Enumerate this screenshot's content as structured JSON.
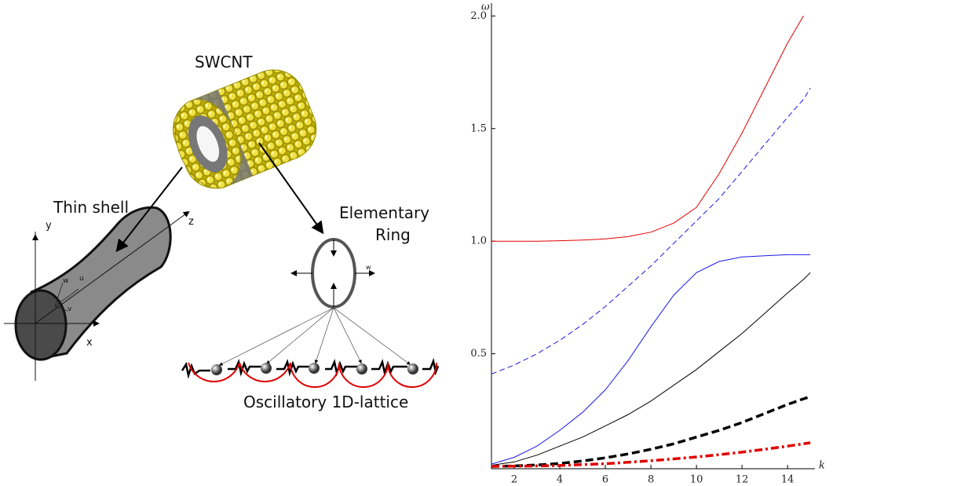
{
  "diagram": {
    "nanotube": "SWCNT",
    "shell": "Thin shell",
    "ring": [
      "Elementary",
      "Ring"
    ],
    "lattice": "Oscillatory 1D-lattice",
    "axes": [
      "y",
      "z",
      "x"
    ],
    "shell_vectors": [
      "w",
      "u",
      "v"
    ],
    "ring_vector": "w"
  },
  "chart_data": {
    "type": "line",
    "x_label": "k",
    "y_label": "ω",
    "x": [
      1,
      2,
      3,
      4,
      5,
      6,
      7,
      8,
      9,
      10,
      11,
      12,
      13,
      14,
      14.7,
      15
    ],
    "xlim": [
      1,
      15.2
    ],
    "xticks": [
      2,
      4,
      6,
      8,
      10,
      12,
      14
    ],
    "ylim": [
      0,
      2.05
    ],
    "yticks": [
      0.5,
      {
        "value": 1,
        "label": "1.0"
      },
      1.5,
      {
        "value": 2,
        "label": "2.0"
      }
    ],
    "series": [
      {
        "color": "#e00000",
        "dash": "solid",
        "width": 1,
        "values": [
          1.0,
          1.0,
          1.0,
          1.002,
          1.005,
          1.01,
          1.02,
          1.04,
          1.08,
          1.15,
          1.3,
          1.48,
          1.68,
          1.88,
          2.0,
          null
        ]
      },
      {
        "color": "#1a1ae6",
        "dash": "dashed",
        "width": 1,
        "values": [
          0.41,
          0.45,
          0.5,
          0.56,
          0.63,
          0.71,
          0.8,
          0.89,
          0.99,
          1.09,
          1.19,
          1.31,
          1.43,
          1.55,
          1.63,
          1.68
        ]
      },
      {
        "color": "#1a1ae6",
        "dash": "solid",
        "width": 1,
        "values": [
          0.01,
          0.04,
          0.09,
          0.16,
          0.24,
          0.34,
          0.47,
          0.62,
          0.76,
          0.86,
          0.91,
          0.93,
          0.935,
          0.94,
          0.94,
          0.94
        ]
      },
      {
        "color": "#000000",
        "dash": "solid",
        "width": 1,
        "values": [
          0.005,
          0.02,
          0.05,
          0.09,
          0.13,
          0.18,
          0.23,
          0.29,
          0.36,
          0.43,
          0.51,
          0.59,
          0.68,
          0.77,
          0.83,
          0.86
        ]
      },
      {
        "color": "#000000",
        "dash": "dashed",
        "width": 3.5,
        "values": [
          0,
          0.002,
          0.006,
          0.013,
          0.024,
          0.038,
          0.055,
          0.076,
          0.1,
          0.13,
          0.16,
          0.195,
          0.235,
          0.275,
          0.3,
          0.31
        ]
      },
      {
        "color": "#e00000",
        "dash": "dashdot",
        "width": 3.5,
        "values": [
          0,
          0.001,
          0.002,
          0.004,
          0.008,
          0.012,
          0.018,
          0.025,
          0.033,
          0.042,
          0.052,
          0.063,
          0.076,
          0.09,
          0.1,
          0.105
        ]
      }
    ]
  }
}
